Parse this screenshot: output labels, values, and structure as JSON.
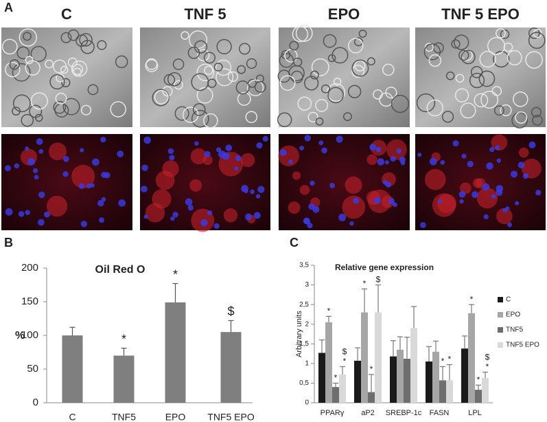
{
  "panels": {
    "a": "A",
    "b": "B",
    "c": "C"
  },
  "images": {
    "labels": [
      "C",
      "TNF 5",
      "EPO",
      "TNF 5 EPO"
    ]
  },
  "chart_data": [
    {
      "type": "bar",
      "title": "Oil Red O",
      "ylabel": "%",
      "categories": [
        "C",
        "TNF5",
        "EPO",
        "TNF5 EPO"
      ],
      "values": [
        100,
        70,
        149,
        105
      ],
      "errors": [
        12,
        11,
        28,
        17
      ],
      "markers": [
        null,
        "*",
        "*",
        "$"
      ],
      "color": "#7f7f7f",
      "ylim": [
        0,
        200
      ],
      "yticks": [
        0,
        50,
        100,
        150,
        200
      ]
    },
    {
      "type": "grouped_bar",
      "title": "Relative gene expression",
      "ylabel": "Arbitrary units",
      "categories": [
        "PPARγ",
        "aP2",
        "SREBP-1c",
        "FASN",
        "LPL"
      ],
      "series": [
        {
          "name": "C",
          "color": "#1a1a1a",
          "values": [
            1.27,
            1.07,
            1.18,
            1.05,
            1.38
          ],
          "errors": [
            0.33,
            0.33,
            0.4,
            0.38,
            0.32
          ],
          "markers": [
            null,
            null,
            null,
            null,
            null
          ]
        },
        {
          "name": "EPO",
          "color": "#a6a6a6",
          "values": [
            2.05,
            2.3,
            1.35,
            1.3,
            2.28
          ],
          "errors": [
            0.15,
            0.6,
            0.33,
            0.27,
            0.22
          ],
          "markers": [
            "*",
            "*",
            null,
            null,
            "*"
          ]
        },
        {
          "name": "TNF5",
          "color": "#6e6e6e",
          "values": [
            0.4,
            0.27,
            1.12,
            0.57,
            0.33
          ],
          "errors": [
            0.1,
            0.45,
            0.55,
            0.35,
            0.12
          ],
          "markers": [
            "*",
            "*",
            null,
            "*",
            "*"
          ]
        },
        {
          "name": "TNF5 EPO",
          "color": "#d9d9d9",
          "values": [
            0.72,
            2.3,
            1.9,
            0.57,
            0.63
          ],
          "errors": [
            0.2,
            0.7,
            0.55,
            0.4,
            0.15
          ],
          "markers": [
            [
              "$",
              "*"
            ],
            "$",
            null,
            "*",
            [
              "$",
              "*"
            ]
          ]
        }
      ],
      "ylim": [
        0,
        3.5
      ],
      "yticks": [
        0,
        {
          "value": 0.5,
          "label": "0,5"
        },
        1,
        {
          "value": 1.5,
          "label": "1,5"
        },
        2,
        {
          "value": 2.5,
          "label": "2,5"
        },
        3,
        {
          "value": 3.5,
          "label": "3,5"
        }
      ]
    }
  ]
}
